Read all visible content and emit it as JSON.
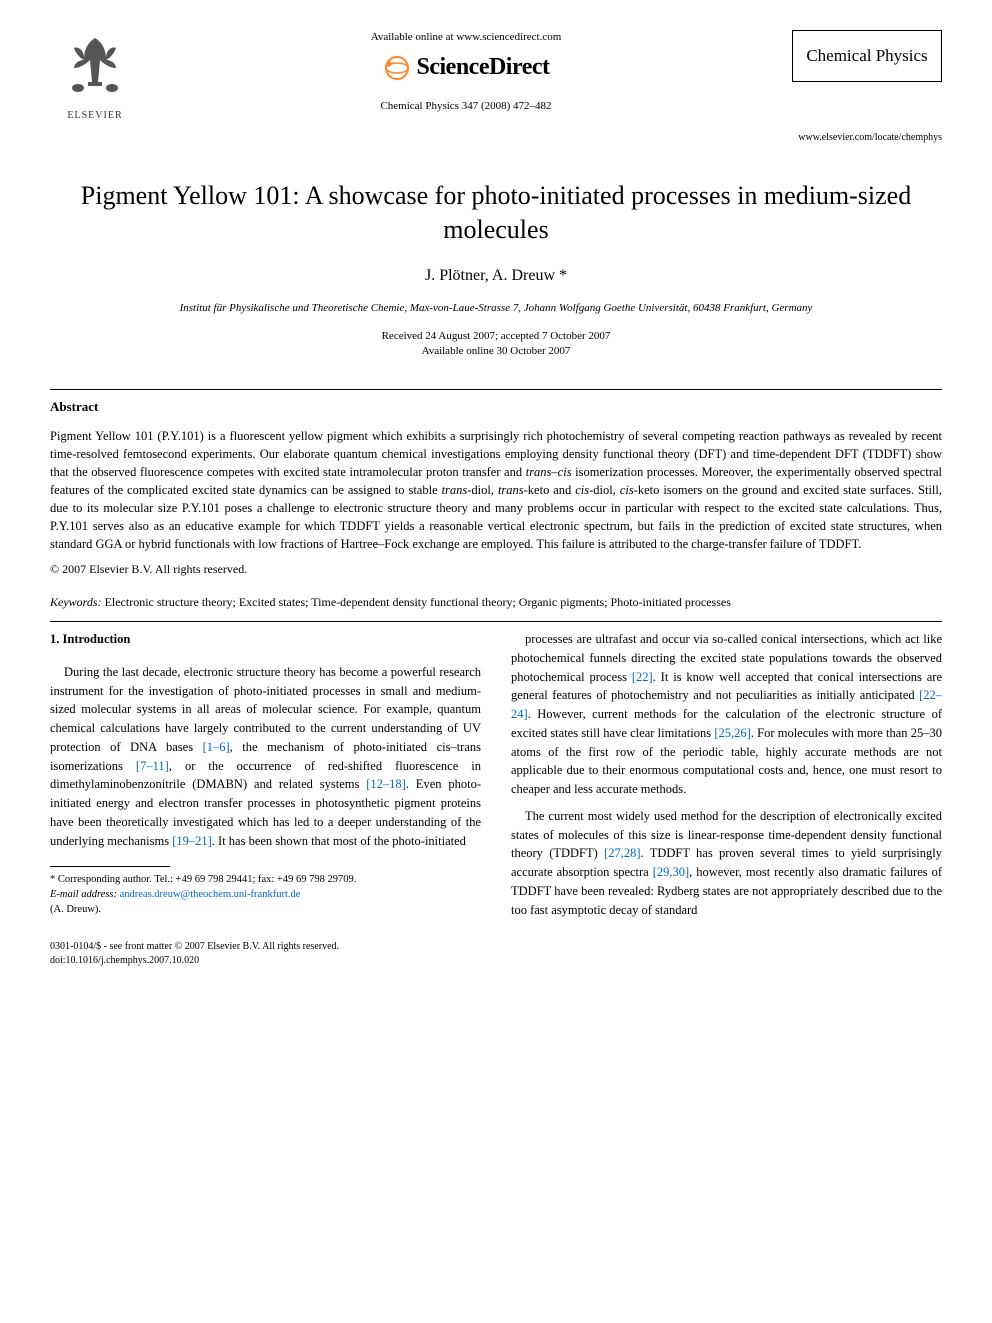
{
  "header": {
    "elsevier_label": "ELSEVIER",
    "available_text": "Available online at www.sciencedirect.com",
    "sd_brand": "ScienceDirect",
    "journal_citation": "Chemical Physics 347 (2008) 472–482",
    "journal_box": "Chemical Physics",
    "locator_url": "www.elsevier.com/locate/chemphys"
  },
  "title": "Pigment Yellow 101: A showcase for photo-initiated processes in medium-sized molecules",
  "authors": "J. Plötner, A. Dreuw *",
  "affiliation": "Institut für Physikalische und Theoretische Chemie, Max-von-Laue-Strasse 7, Johann Wolfgang Goethe Universität, 60438 Frankfurt, Germany",
  "dates": {
    "received": "Received 24 August 2007; accepted 7 October 2007",
    "online": "Available online 30 October 2007"
  },
  "abstract": {
    "heading": "Abstract",
    "body_html": "Pigment Yellow 101 (P.Y.101) is a fluorescent yellow pigment which exhibits a surprisingly rich photochemistry of several competing reaction pathways as revealed by recent time-resolved femtosecond experiments. Our elaborate quantum chemical investigations employing density functional theory (DFT) and time-dependent DFT (TDDFT) show that the observed fluorescence competes with excited state intramolecular proton transfer and <span class=\"em\">trans–cis</span> isomerization processes. Moreover, the experimentally observed spectral features of the complicated excited state dynamics can be assigned to stable <span class=\"em\">trans</span>-diol, <span class=\"em\">trans</span>-keto and <span class=\"em\">cis</span>-diol, <span class=\"em\">cis</span>-keto isomers on the ground and excited state surfaces. Still, due to its molecular size P.Y.101 poses a challenge to electronic structure theory and many problems occur in particular with respect to the excited state calculations. Thus, P.Y.101 serves also as an educative example for which TDDFT yields a reasonable vertical electronic spectrum, but fails in the prediction of excited state structures, when standard GGA or hybrid functionals with low fractions of Hartree–Fock exchange are employed. This failure is attributed to the charge-transfer failure of TDDFT.",
    "copyright": "© 2007 Elsevier B.V. All rights reserved."
  },
  "keywords": {
    "label": "Keywords:",
    "list": "Electronic structure theory; Excited states; Time-dependent density functional theory; Organic pigments; Photo-initiated processes"
  },
  "introduction": {
    "heading": "1. Introduction",
    "p1_html": "During the last decade, electronic structure theory has become a powerful research instrument for the investigation of photo-initiated processes in small and medium-sized molecular systems in all areas of molecular science. For example, quantum chemical calculations have largely contributed to the current understanding of UV protection of DNA bases <span class=\"cite\">[1–6]</span>, the mechanism of photo-initiated <span class=\"em\">cis–trans</span> isomerizations <span class=\"cite\">[7–11]</span>, or the occurrence of red-shifted fluorescence in dimethylaminobenzonitrile (DMABN) and related systems <span class=\"cite\">[12–18]</span>. Even photo-initiated energy and electron transfer processes in photosynthetic pigment proteins have been theoretically investigated which has led to a deeper understanding of the underlying mechanisms <span class=\"cite\">[19–21]</span>. It has been shown that most of the photo-initiated",
    "p2_html": "processes are ultrafast and occur via so-called conical intersections, which act like photochemical funnels directing the excited state populations towards the observed photochemical process <span class=\"cite\">[22]</span>. It is know well accepted that conical intersections are general features of photochemistry and not peculiarities as initially anticipated <span class=\"cite\">[22–24]</span>. However, current methods for the calculation of the electronic structure of excited states still have clear limitations <span class=\"cite\">[25,26]</span>. For molecules with more than 25–30 atoms of the first row of the periodic table, highly accurate methods are not applicable due to their enormous computational costs and, hence, one must resort to cheaper and less accurate methods.",
    "p3_html": "The current most widely used method for the description of electronically excited states of molecules of this size is linear-response time-dependent density functional theory (TDDFT) <span class=\"cite\">[27,28]</span>. TDDFT has proven several times to yield surprisingly accurate absorption spectra <span class=\"cite\">[29,30]</span>, however, most recently also dramatic failures of TDDFT have been revealed: Rydberg states are not appropriately described due to the too fast asymptotic decay of standard"
  },
  "footnote": {
    "corresp": "* Corresponding author. Tel.: +49 69 798 29441; fax: +49 69 798 29709.",
    "email_label": "E-mail address:",
    "email": "andreas.dreuw@theochem.uni-frankfurt.de",
    "email_who": "(A. Dreuw)."
  },
  "bottom": {
    "issn_line": "0301-0104/$ - see front matter © 2007 Elsevier B.V. All rights reserved.",
    "doi_line": "doi:10.1016/j.chemphys.2007.10.020"
  },
  "colors": {
    "link": "#0066cc",
    "text": "#000000",
    "bg": "#ffffff",
    "elsevier_orange": "#ff8426"
  }
}
